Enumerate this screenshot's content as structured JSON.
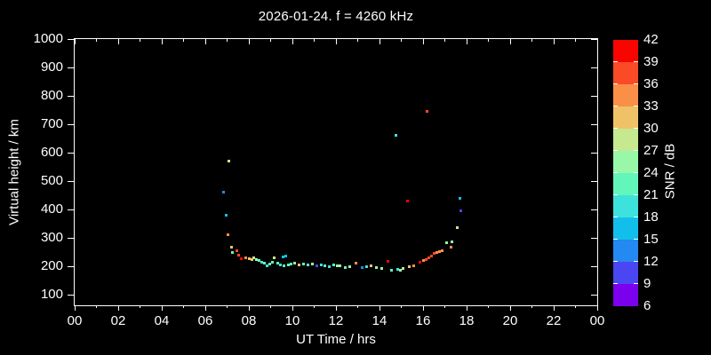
{
  "colors": {
    "background": "#000000",
    "foreground": "#ffffff"
  },
  "chart_data": {
    "type": "scatter",
    "title": "2026-01-24. f = 4260 kHz",
    "xlabel": "UT Time / hrs",
    "ylabel": "Virtual height / km",
    "colorbar_label": "SNR / dB",
    "grid": false,
    "xlim": [
      0,
      24
    ],
    "ylim": [
      63,
      1000
    ],
    "x_major_ticks": [
      0,
      2,
      4,
      6,
      8,
      10,
      12,
      14,
      16,
      18,
      20,
      22,
      24
    ],
    "x_tick_labels": [
      "00",
      "02",
      "04",
      "06",
      "08",
      "10",
      "12",
      "14",
      "16",
      "18",
      "20",
      "22",
      "00"
    ],
    "x_minor_ticks": [
      1,
      3,
      5,
      7,
      9,
      11,
      13,
      15,
      17,
      19,
      21,
      23
    ],
    "y_ticks": [
      100,
      200,
      300,
      400,
      500,
      600,
      700,
      800,
      900,
      1000
    ],
    "snr_ticks": [
      6,
      9,
      12,
      15,
      18,
      21,
      24,
      27,
      30,
      33,
      36,
      39,
      42
    ],
    "snr_colors": [
      "#7b00ee",
      "#4a46f2",
      "#2489f0",
      "#12bfea",
      "#3de2dd",
      "#63f6bb",
      "#98f8a8",
      "#c6e88e",
      "#efc268",
      "#fa9048",
      "#fb4a26",
      "#f90500"
    ],
    "points_format": [
      "ut_hours",
      "virtual_height_km",
      "snr_db"
    ],
    "points": [
      [
        6.83,
        460,
        13
      ],
      [
        6.96,
        380,
        16
      ],
      [
        7.08,
        570,
        28
      ],
      [
        14.77,
        660,
        20
      ],
      [
        15.3,
        430,
        41
      ],
      [
        16.19,
        745,
        37
      ],
      [
        17.7,
        440,
        16
      ],
      [
        17.74,
        395,
        10
      ],
      [
        7.04,
        312,
        34
      ],
      [
        7.2,
        268,
        31
      ],
      [
        7.26,
        249,
        22
      ],
      [
        7.44,
        255,
        38
      ],
      [
        7.53,
        240,
        37
      ],
      [
        7.65,
        227,
        40
      ],
      [
        7.85,
        230,
        34
      ],
      [
        8.01,
        227,
        32
      ],
      [
        8.14,
        224,
        30
      ],
      [
        8.22,
        230,
        28
      ],
      [
        8.34,
        224,
        25
      ],
      [
        8.46,
        221,
        22
      ],
      [
        8.58,
        215,
        20
      ],
      [
        8.7,
        212,
        21
      ],
      [
        8.83,
        202,
        19
      ],
      [
        8.95,
        209,
        21
      ],
      [
        9.07,
        215,
        22
      ],
      [
        9.15,
        230,
        28
      ],
      [
        9.32,
        212,
        21
      ],
      [
        9.44,
        206,
        20
      ],
      [
        9.56,
        234,
        16
      ],
      [
        9.68,
        237,
        16
      ],
      [
        9.6,
        203,
        22
      ],
      [
        9.8,
        206,
        23
      ],
      [
        9.95,
        209,
        21
      ],
      [
        10.12,
        212,
        25
      ],
      [
        10.29,
        206,
        31
      ],
      [
        10.5,
        209,
        22
      ],
      [
        10.7,
        206,
        21
      ],
      [
        10.9,
        209,
        24
      ],
      [
        11.14,
        202,
        11
      ],
      [
        11.31,
        206,
        19
      ],
      [
        11.5,
        202,
        21
      ],
      [
        11.71,
        199,
        20
      ],
      [
        11.88,
        206,
        23
      ],
      [
        12.08,
        202,
        26
      ],
      [
        12.2,
        202,
        25
      ],
      [
        12.41,
        196,
        21
      ],
      [
        12.65,
        199,
        24
      ],
      [
        12.9,
        212,
        34
      ],
      [
        13.22,
        196,
        14
      ],
      [
        13.42,
        199,
        20
      ],
      [
        13.63,
        202,
        32
      ],
      [
        13.87,
        196,
        24
      ],
      [
        14.11,
        193,
        25
      ],
      [
        14.4,
        218,
        40
      ],
      [
        14.56,
        187,
        21
      ],
      [
        14.85,
        190,
        20
      ],
      [
        14.97,
        187,
        24
      ],
      [
        15.09,
        193,
        28
      ],
      [
        15.38,
        199,
        31
      ],
      [
        15.58,
        202,
        34
      ],
      [
        15.87,
        215,
        39
      ],
      [
        16.03,
        221,
        35
      ],
      [
        16.15,
        224,
        36
      ],
      [
        16.27,
        230,
        38
      ],
      [
        16.39,
        237,
        36
      ],
      [
        16.52,
        246,
        38
      ],
      [
        16.64,
        249,
        35
      ],
      [
        16.76,
        252,
        34
      ],
      [
        16.88,
        255,
        33
      ],
      [
        17.09,
        283,
        25
      ],
      [
        17.29,
        268,
        34
      ],
      [
        17.33,
        286,
        26
      ],
      [
        17.57,
        335,
        28
      ]
    ]
  }
}
